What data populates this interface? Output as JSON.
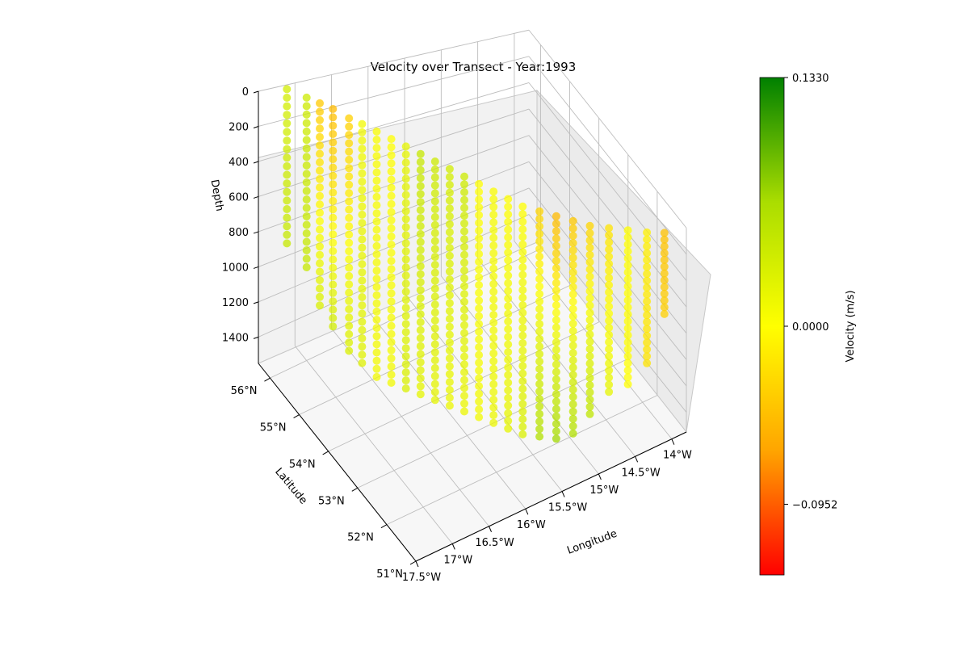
{
  "chart_data": {
    "type": "scatter",
    "subtype": "3d-scatter",
    "title": "Velocity over Transect - Year:1993",
    "x_axis": {
      "label": "Longitude",
      "range": [
        -17.5,
        -13.8
      ],
      "ticks": [
        -17.5,
        -17,
        -16.5,
        -16,
        -15.5,
        -15,
        -14.5,
        -14
      ],
      "tick_labels": [
        "17.5°W",
        "17°W",
        "16.5°W",
        "16°W",
        "15.5°W",
        "15°W",
        "14.5°W",
        "14°W"
      ]
    },
    "y_axis": {
      "label": "Latitude",
      "range": [
        51,
        56.4
      ],
      "ticks": [
        51,
        52,
        53,
        54,
        55,
        56
      ],
      "tick_labels": [
        "51°N",
        "52°N",
        "53°N",
        "54°N",
        "55°N",
        "56°N"
      ]
    },
    "z_axis": {
      "label": "Depth",
      "inverted": true,
      "range": [
        0,
        1550
      ],
      "ticks": [
        0,
        200,
        400,
        600,
        800,
        1000,
        1200,
        1400
      ],
      "tick_labels": [
        "0",
        "200",
        "400",
        "600",
        "800",
        "1000",
        "1200",
        "1400"
      ]
    },
    "colorbar": {
      "label": "Velocity (m/s)",
      "range": [
        -0.133,
        0.133
      ],
      "tick_values": [
        0.133,
        0,
        -0.0952
      ],
      "tick_labels": [
        "0.1330",
        "0.0000",
        "−0.0952"
      ],
      "colormap": [
        "#ff0000",
        "#ffa500",
        "#ffff00",
        "#aadd00",
        "#008000"
      ]
    },
    "grid": true,
    "depth_levels": [
      0,
      50,
      100,
      150,
      200,
      250,
      300,
      350,
      400,
      450,
      500,
      550,
      600,
      650,
      700,
      750,
      800,
      850,
      900,
      950,
      1000,
      1050,
      1100,
      1150,
      1200,
      1250,
      1300,
      1350,
      1400,
      1450,
      1500
    ],
    "stations": [
      {
        "lon": -17.15,
        "lat": 56.3,
        "max_depth": 900,
        "top_vel": 0.035,
        "bottom_vel": 0.045
      },
      {
        "lon": -17.0,
        "lat": 56.0,
        "max_depth": 1000,
        "top_vel": 0.04,
        "bottom_vel": 0.045
      },
      {
        "lon": -16.9,
        "lat": 55.8,
        "max_depth": 1200,
        "top_vel": -0.04,
        "bottom_vel": 0.03
      },
      {
        "lon": -16.8,
        "lat": 55.6,
        "max_depth": 1300,
        "top_vel": -0.05,
        "bottom_vel": 0.035
      },
      {
        "lon": -16.7,
        "lat": 55.3,
        "max_depth": 1400,
        "top_vel": -0.035,
        "bottom_vel": 0.03
      },
      {
        "lon": -16.6,
        "lat": 55.1,
        "max_depth": 1450,
        "top_vel": 0.01,
        "bottom_vel": 0.025
      },
      {
        "lon": -16.5,
        "lat": 54.85,
        "max_depth": 1500,
        "top_vel": 0.005,
        "bottom_vel": 0.01
      },
      {
        "lon": -16.4,
        "lat": 54.6,
        "max_depth": 1500,
        "top_vel": 0.0,
        "bottom_vel": 0.01
      },
      {
        "lon": -16.3,
        "lat": 54.35,
        "max_depth": 1500,
        "top_vel": 0.02,
        "bottom_vel": 0.03
      },
      {
        "lon": -16.2,
        "lat": 54.1,
        "max_depth": 1500,
        "top_vel": 0.045,
        "bottom_vel": 0.02
      },
      {
        "lon": -16.1,
        "lat": 53.85,
        "max_depth": 1500,
        "top_vel": 0.04,
        "bottom_vel": 0.02
      },
      {
        "lon": -16.0,
        "lat": 53.6,
        "max_depth": 1500,
        "top_vel": 0.035,
        "bottom_vel": 0.015
      },
      {
        "lon": -15.9,
        "lat": 53.35,
        "max_depth": 1500,
        "top_vel": 0.04,
        "bottom_vel": 0.015
      },
      {
        "lon": -15.8,
        "lat": 53.1,
        "max_depth": 1500,
        "top_vel": 0.0,
        "bottom_vel": 0.01
      },
      {
        "lon": -15.7,
        "lat": 52.85,
        "max_depth": 1500,
        "top_vel": 0.005,
        "bottom_vel": 0.015
      },
      {
        "lon": -15.6,
        "lat": 52.6,
        "max_depth": 1500,
        "top_vel": 0.0,
        "bottom_vel": 0.02
      },
      {
        "lon": -15.5,
        "lat": 52.35,
        "max_depth": 1500,
        "top_vel": 0.0,
        "bottom_vel": 0.03
      },
      {
        "lon": -15.35,
        "lat": 52.15,
        "max_depth": 1500,
        "top_vel": -0.03,
        "bottom_vel": 0.06
      },
      {
        "lon": -15.2,
        "lat": 51.95,
        "max_depth": 1500,
        "top_vel": -0.05,
        "bottom_vel": 0.07
      },
      {
        "lon": -15.05,
        "lat": 51.75,
        "max_depth": 1450,
        "top_vel": -0.04,
        "bottom_vel": 0.06
      },
      {
        "lon": -14.9,
        "lat": 51.55,
        "max_depth": 1300,
        "top_vel": -0.03,
        "bottom_vel": 0.05
      },
      {
        "lon": -14.7,
        "lat": 51.4,
        "max_depth": 1150,
        "top_vel": -0.02,
        "bottom_vel": 0.02
      },
      {
        "lon": -14.5,
        "lat": 51.25,
        "max_depth": 1100,
        "top_vel": 0.0,
        "bottom_vel": 0.0
      },
      {
        "lon": -14.3,
        "lat": 51.1,
        "max_depth": 950,
        "top_vel": -0.01,
        "bottom_vel": -0.02
      },
      {
        "lon": -14.1,
        "lat": 51.0,
        "max_depth": 600,
        "top_vel": -0.045,
        "bottom_vel": -0.035
      }
    ]
  }
}
